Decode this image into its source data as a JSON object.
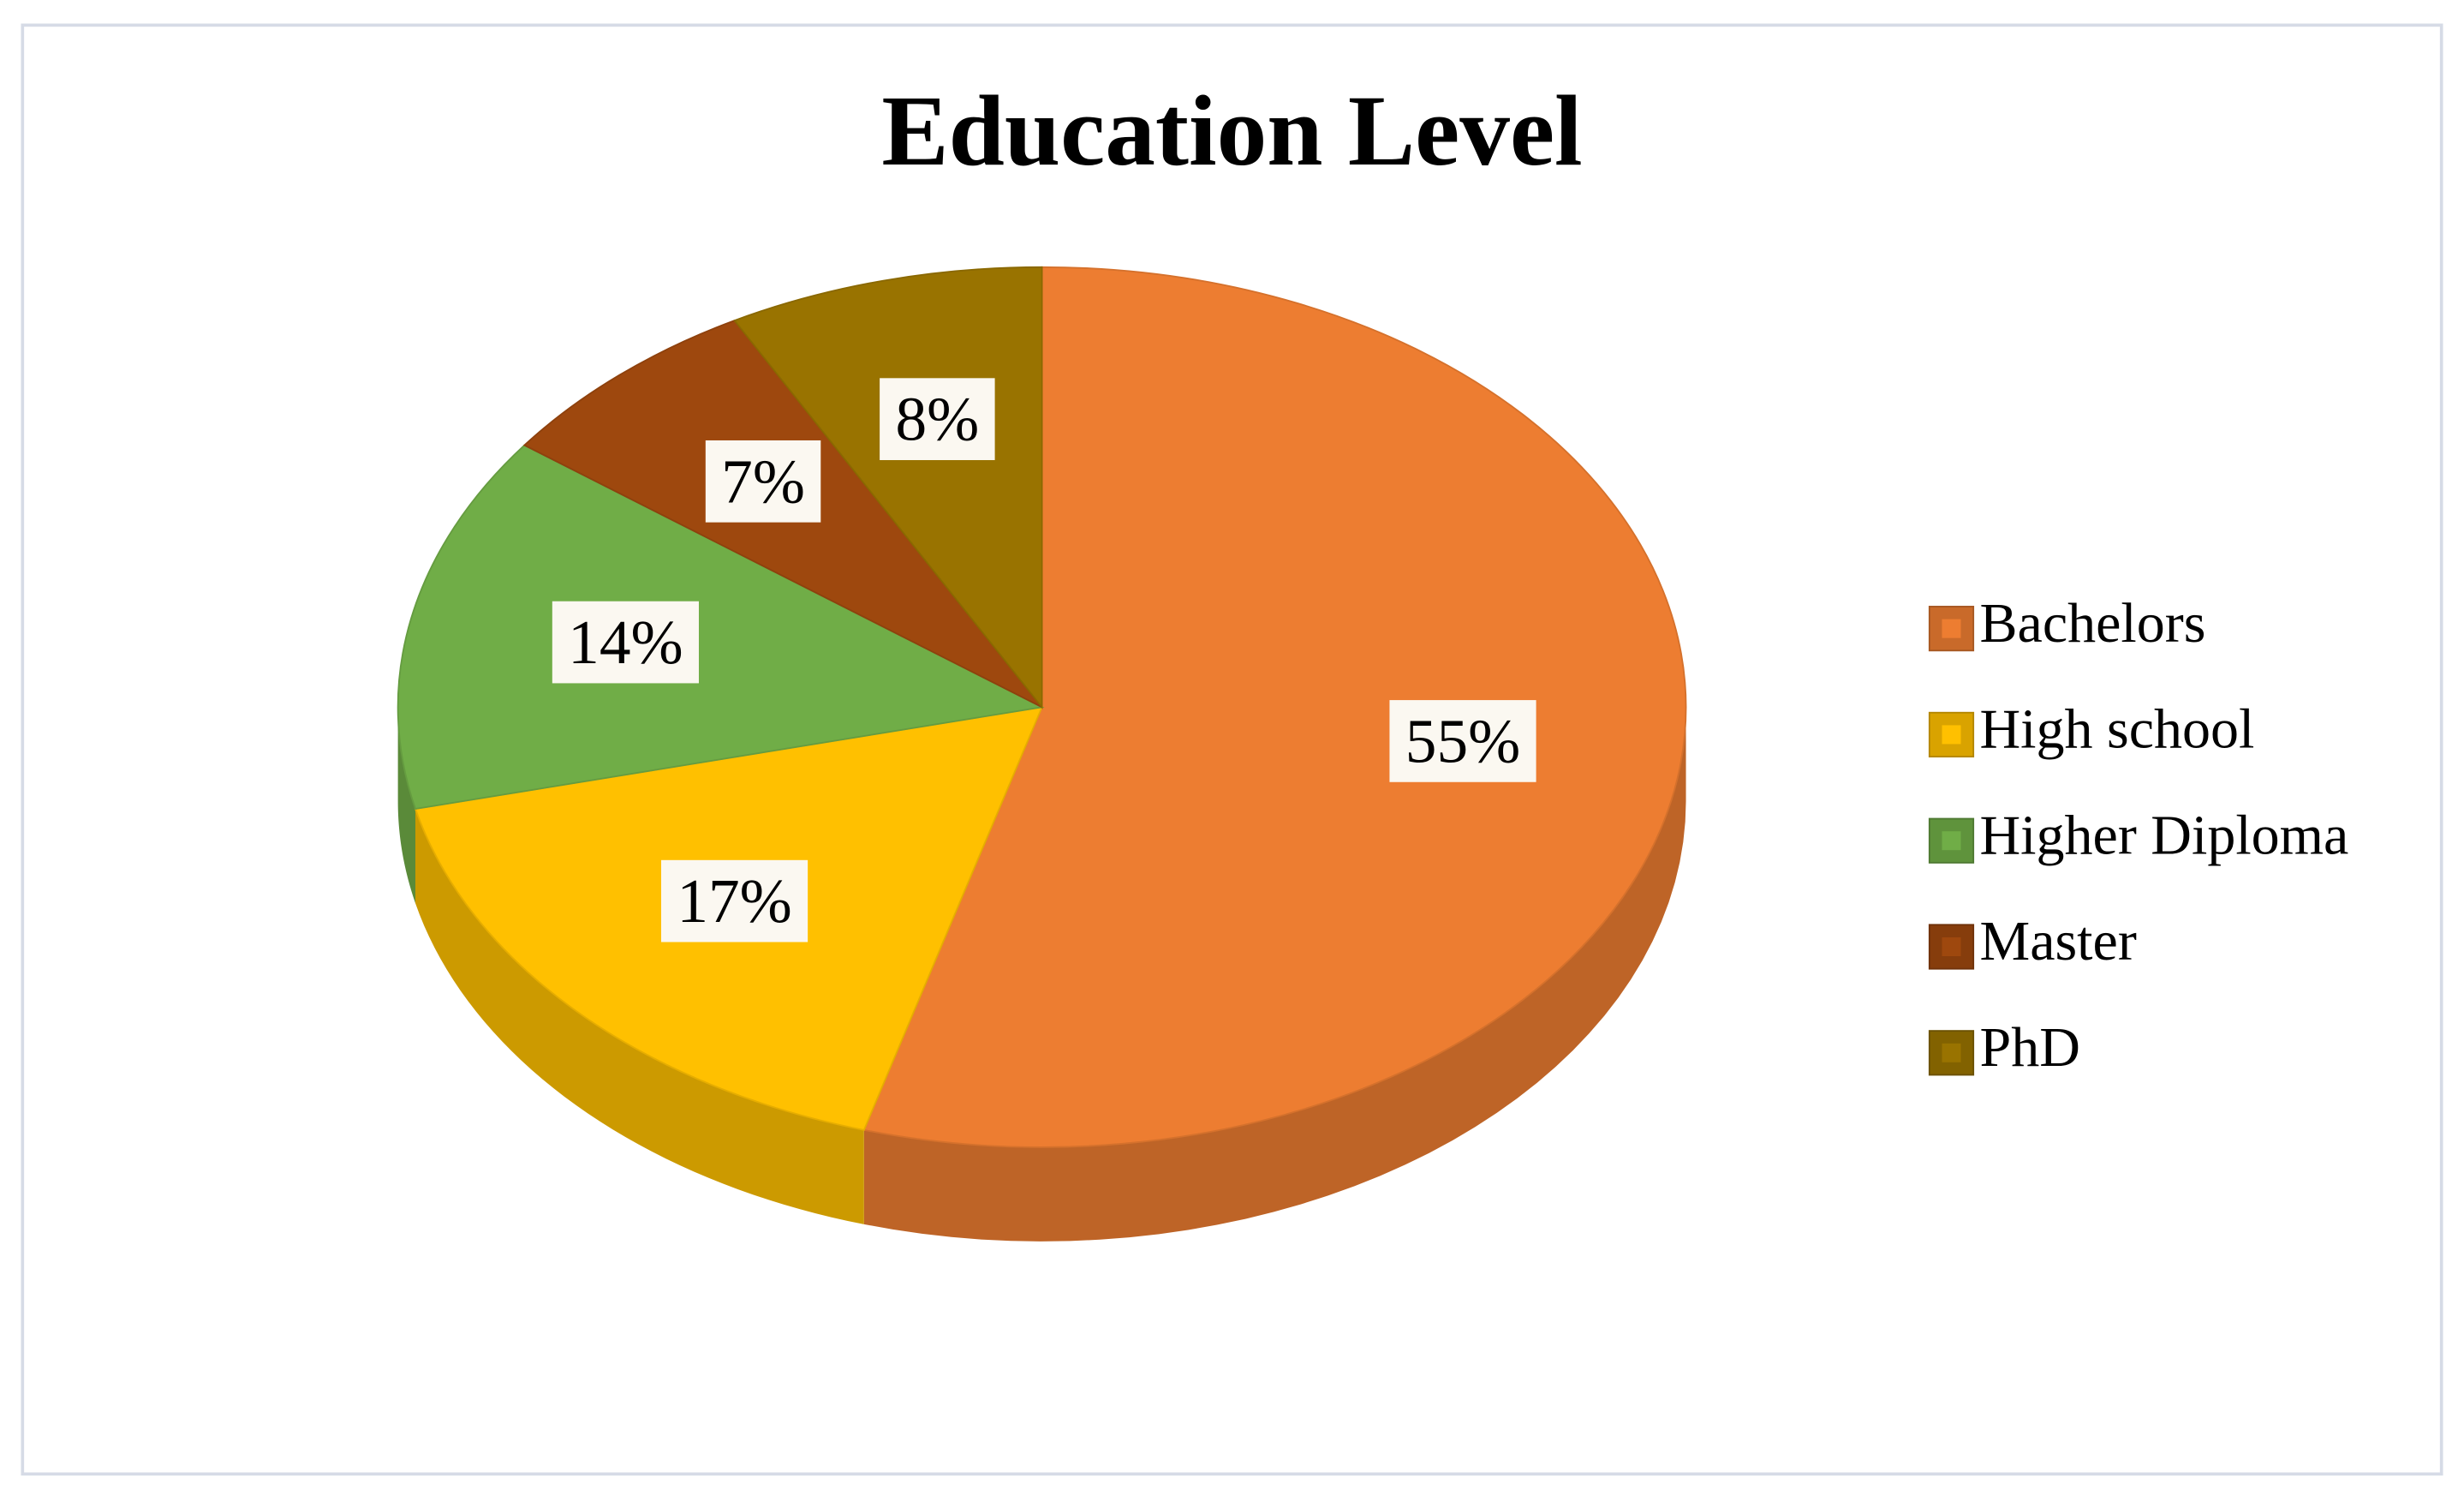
{
  "chart_data": {
    "type": "pie",
    "title": "Education Level",
    "categories": [
      "Bachelors",
      "High school",
      "Higher Diploma",
      "Master",
      "PhD"
    ],
    "values": [
      55,
      17,
      14,
      7,
      8
    ],
    "value_labels": [
      "55%",
      "17%",
      "14%",
      "7%",
      "8%"
    ],
    "colors": [
      "#ED7D31",
      "#FFC000",
      "#70AD47",
      "#9E480E",
      "#997300"
    ],
    "legend": "right"
  }
}
